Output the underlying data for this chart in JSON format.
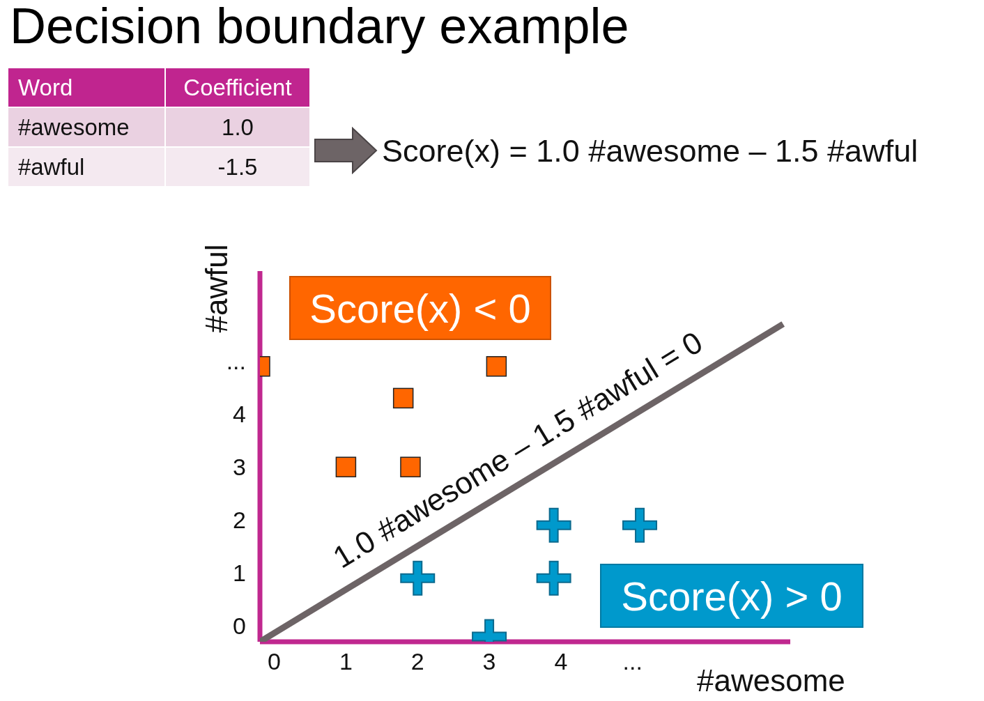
{
  "chart_data": [
    {
      "type": "other",
      "title": "Decision boundary example",
      "categories": [
        "#awesome",
        "#awful"
      ],
      "values": [
        1.0,
        -1.5
      ],
      "value_labels": [
        "1.0",
        "-1.5"
      ],
      "annotations": [
        "Word",
        "Coefficient",
        "Score(x) = 1.0 #awesome – 1.5 #awful"
      ]
    },
    {
      "type": "scatter",
      "xlabel": "#awesome",
      "ylabel": "#awful",
      "xlim": [
        -0.2,
        7.2
      ],
      "ylim": [
        -0.3,
        6.7
      ],
      "xticks": [
        0,
        1,
        2,
        3,
        4,
        {
          "value": 5,
          "label": "..."
        }
      ],
      "yticks": [
        0,
        1,
        2,
        3,
        4,
        {
          "value": 5,
          "label": "..."
        }
      ],
      "grid": false,
      "legend": false,
      "series": [
        {
          "color": "#ff6600",
          "marker": "square",
          "x": [
            -0.2,
            1,
            1.9,
            1.8,
            3.1
          ],
          "values": [
            4.9,
            3,
            3,
            4.3,
            4.9
          ]
        },
        {
          "color": "#0099cc",
          "marker": "cross",
          "x": [
            2,
            3.9,
            3.9,
            5.1,
            3
          ],
          "values": [
            0.9,
            1.9,
            0.9,
            1.9,
            -0.2
          ]
        },
        {
          "type": "line",
          "color": "#6d6466",
          "marker": "none",
          "x": [
            -0.2,
            7.1
          ],
          "values": [
            -0.3,
            5.7
          ]
        }
      ],
      "annotations": [
        "1.0 #awesome – 1.5 #awful = 0",
        "Score(x) < 0",
        "Score(x) > 0"
      ]
    }
  ]
}
